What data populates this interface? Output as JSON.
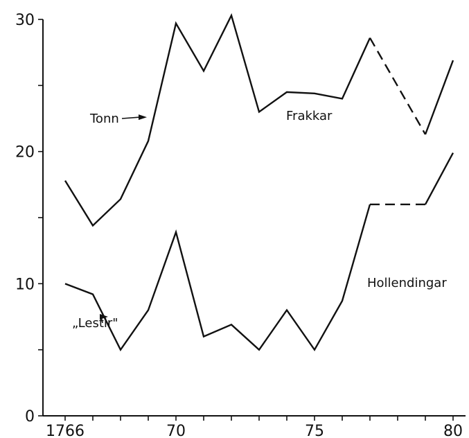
{
  "chart_data": {
    "type": "line",
    "title": "",
    "xlabel": "",
    "ylabel": "",
    "xlim": [
      1765,
      1780
    ],
    "ylim": [
      0,
      30
    ],
    "x_ticks": [
      1766,
      1767,
      1768,
      1769,
      1770,
      1771,
      1772,
      1773,
      1774,
      1775,
      1776,
      1777,
      1778,
      1779,
      1780
    ],
    "x_tick_labels": [
      {
        "value": 1766,
        "label": "1766"
      },
      {
        "value": 1770,
        "label": "70"
      },
      {
        "value": 1775,
        "label": "75"
      },
      {
        "value": 1780,
        "label": "80"
      }
    ],
    "y_ticks": [
      0,
      5,
      10,
      15,
      20,
      25,
      30
    ],
    "y_tick_labels": [
      {
        "value": 0,
        "label": "0"
      },
      {
        "value": 10,
        "label": "10"
      },
      {
        "value": 20,
        "label": "20"
      },
      {
        "value": 30,
        "label": "30"
      }
    ],
    "grid": false,
    "series": [
      {
        "name": "Frakkar",
        "points": [
          {
            "x": 1766,
            "y": 17.8
          },
          {
            "x": 1767,
            "y": 14.4
          },
          {
            "x": 1768,
            "y": 16.4
          },
          {
            "x": 1769,
            "y": 20.8
          },
          {
            "x": 1770,
            "y": 29.7
          },
          {
            "x": 1771,
            "y": 26.1
          },
          {
            "x": 1772,
            "y": 30.3
          },
          {
            "x": 1773,
            "y": 23.0
          },
          {
            "x": 1774,
            "y": 24.5
          },
          {
            "x": 1775,
            "y": 24.4
          },
          {
            "x": 1776,
            "y": 24.0
          },
          {
            "x": 1777,
            "y": 28.6
          },
          {
            "x": 1779,
            "y": 21.3
          },
          {
            "x": 1780,
            "y": 26.9
          }
        ],
        "dashed_after": 1777,
        "dashed_until": 1779
      },
      {
        "name": "Hollendingar",
        "points": [
          {
            "x": 1766,
            "y": 10.0
          },
          {
            "x": 1767,
            "y": 9.2
          },
          {
            "x": 1768,
            "y": 5.0
          },
          {
            "x": 1769,
            "y": 8.0
          },
          {
            "x": 1770,
            "y": 13.9
          },
          {
            "x": 1771,
            "y": 6.0
          },
          {
            "x": 1772,
            "y": 6.9
          },
          {
            "x": 1773,
            "y": 5.0
          },
          {
            "x": 1774,
            "y": 8.0
          },
          {
            "x": 1775,
            "y": 5.0
          },
          {
            "x": 1776,
            "y": 8.7
          },
          {
            "x": 1777,
            "y": 16.0
          },
          {
            "x": 1779,
            "y": 16.0
          },
          {
            "x": 1780,
            "y": 19.9
          }
        ],
        "dashed_after": 1777,
        "dashed_until": 1779
      }
    ],
    "annotations": [
      {
        "text": "Tonn",
        "arrow_to": {
          "x": 1769,
          "y": 22.6
        }
      },
      {
        "text": "„Lestir\"",
        "arrow_to": {
          "x": 1767.6,
          "y": 7.5
        }
      }
    ]
  }
}
